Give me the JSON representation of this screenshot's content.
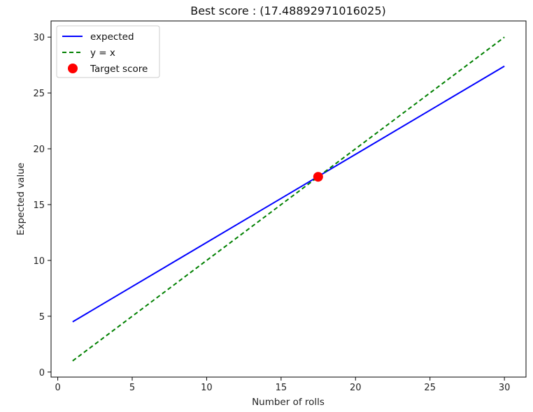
{
  "chart_data": {
    "type": "line",
    "title": "Best score : (17.48892971016025)",
    "xlabel": "Number of rolls",
    "ylabel": "Expected value",
    "xlim": [
      -0.45,
      31.45
    ],
    "ylim": [
      -0.45,
      31.45
    ],
    "xticks": [
      0,
      5,
      10,
      15,
      20,
      25,
      30
    ],
    "yticks": [
      0,
      5,
      10,
      15,
      20,
      25,
      30
    ],
    "grid": false,
    "legend_position": "top-left",
    "series": [
      {
        "name": "expected",
        "style": "solid",
        "color": "#0000ff",
        "x": [
          1,
          30
        ],
        "y": [
          4.5,
          27.4
        ]
      },
      {
        "name": "y = x",
        "style": "dashed",
        "color": "#008000",
        "x": [
          1,
          30
        ],
        "y": [
          1,
          30
        ]
      },
      {
        "name": "Target score",
        "style": "marker",
        "color": "#ff0000",
        "x": [
          17.489
        ],
        "y": [
          17.489
        ]
      }
    ]
  }
}
